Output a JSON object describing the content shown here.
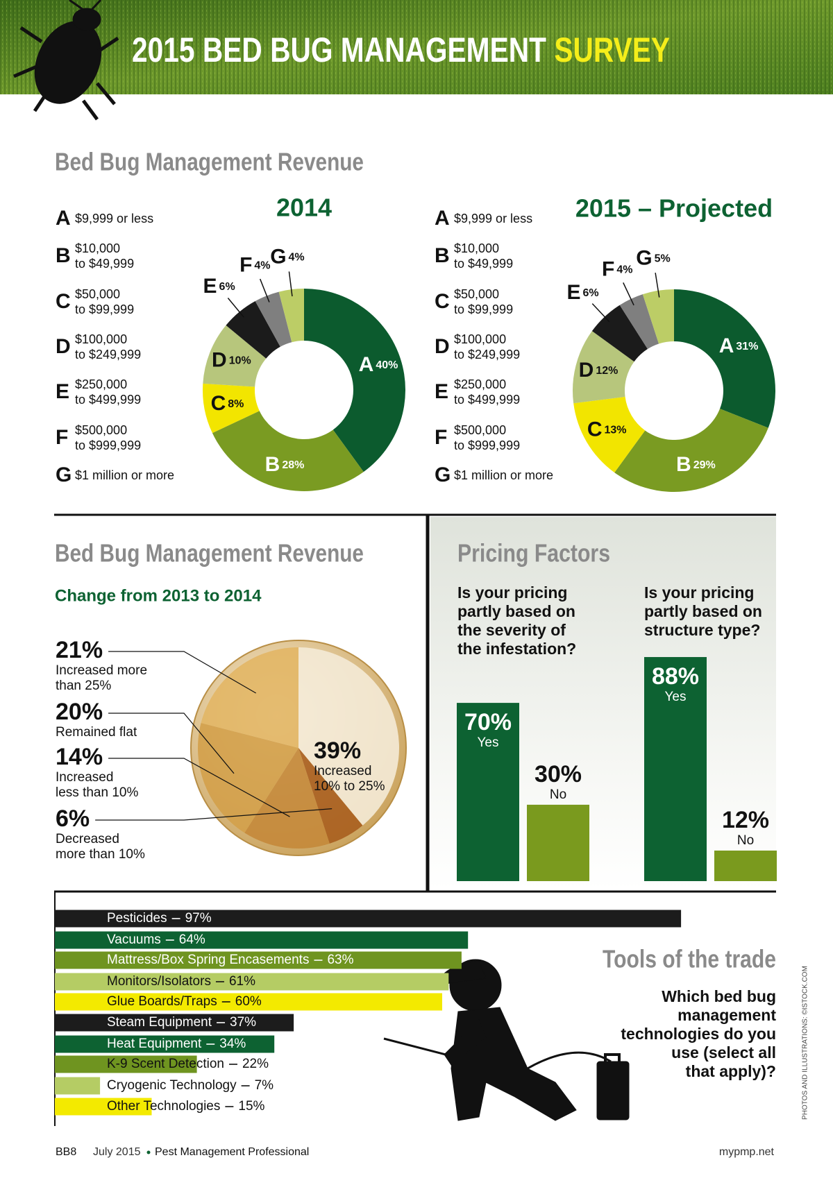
{
  "header": {
    "title": "2015 BED BUG MANAGEMENT",
    "title_highlight": "SURVEY"
  },
  "revenue_section": {
    "title": "Bed Bug Management Revenue",
    "ranges": [
      [
        "$9,999 or less"
      ],
      [
        "$10,000",
        "to $49,999"
      ],
      [
        "$50,000",
        "to $99,999"
      ],
      [
        "$100,000",
        "to $249,999"
      ],
      [
        "$250,000",
        "to $499,999"
      ],
      [
        "$500,000",
        "to $999,999"
      ],
      [
        "$1 million or more"
      ]
    ]
  },
  "change_section": {
    "title": "Bed Bug Management Revenue",
    "subtitle": "Change from 2013 to 2014"
  },
  "pricing_section": {
    "title": "Pricing Factors"
  },
  "tools_section": {
    "title": "Tools of the trade",
    "question": [
      "Which bed bug",
      "management",
      "technologies do you",
      "use (select all",
      "that apply)?"
    ]
  },
  "chart_data": [
    {
      "type": "donut",
      "title": "2014",
      "categories": [
        "A",
        "B",
        "C",
        "D",
        "E",
        "F",
        "G"
      ],
      "values": [
        40,
        28,
        8,
        10,
        6,
        4,
        4
      ],
      "value_labels": [
        "40%",
        "28%",
        "8%",
        "10%",
        "6%",
        "4%",
        "4%"
      ],
      "colors": [
        "#0c5b2e",
        "#7a9b22",
        "#f2e500",
        "#b7c67c",
        "#1b1b1b",
        "#7f7f7f",
        "#bccd66"
      ]
    },
    {
      "type": "donut",
      "title": "2015 – Projected",
      "categories": [
        "A",
        "B",
        "C",
        "D",
        "E",
        "F",
        "G"
      ],
      "values": [
        31,
        29,
        13,
        12,
        6,
        4,
        5
      ],
      "value_labels": [
        "31%",
        "29%",
        "13%",
        "12%",
        "6%",
        "4%",
        "5%"
      ],
      "colors": [
        "#0c5b2e",
        "#7a9b22",
        "#f2e500",
        "#b7c67c",
        "#1b1b1b",
        "#7f7f7f",
        "#bccd66"
      ]
    },
    {
      "type": "pie",
      "categories": [
        [
          "Increased more",
          "than 25%"
        ],
        [
          "Remained flat"
        ],
        [
          "Increased",
          "less than 10%"
        ],
        [
          "Decreased",
          "more than 10%"
        ],
        [
          "Increased",
          "10% to 25%"
        ]
      ],
      "values": [
        21,
        20,
        14,
        6,
        39
      ],
      "value_labels": [
        "21%",
        "20%",
        "14%",
        "6%",
        "39%"
      ],
      "colors": [
        "#e2b665",
        "#d3a04a",
        "#c4883a",
        "#a95e1e",
        "#f4ead6"
      ]
    },
    {
      "type": "bar",
      "title": [
        "Is your pricing",
        "partly based on",
        "the severity of",
        "the infestation?"
      ],
      "categories": [
        "Yes",
        "No"
      ],
      "values": [
        70,
        30
      ],
      "value_labels": [
        "70%",
        "30%"
      ],
      "colors": [
        "#0d6232",
        "#7a9a1e"
      ],
      "ylim": [
        0,
        100
      ]
    },
    {
      "type": "bar",
      "title": [
        "Is your pricing",
        "partly based on",
        "structure type?"
      ],
      "categories": [
        "Yes",
        "No"
      ],
      "values": [
        88,
        12
      ],
      "value_labels": [
        "88%",
        "12%"
      ],
      "colors": [
        "#0d6232",
        "#7a9a1e"
      ],
      "ylim": [
        0,
        100
      ]
    },
    {
      "type": "barh",
      "categories": [
        "Pesticides",
        "Vacuums",
        "Mattress/Box Spring Encasements",
        "Monitors/Isolators",
        "Glue Boards/Traps",
        "Steam Equipment",
        "Heat Equipment",
        "K-9 Scent Detection",
        "Cryogenic Technology",
        "Other Technologies"
      ],
      "values": [
        97,
        64,
        63,
        61,
        60,
        37,
        34,
        22,
        7,
        15
      ],
      "value_labels": [
        "97%",
        "64%",
        "63%",
        "61%",
        "60%",
        "37%",
        "34%",
        "22%",
        "7%",
        "15%"
      ],
      "colors": [
        "#1c1c1c",
        "#0d6232",
        "#6f9420",
        "#b5cc64",
        "#f3ea00",
        "#1c1c1c",
        "#0d6232",
        "#6f9420",
        "#b5cc64",
        "#f3ea00"
      ],
      "xlim": [
        0,
        100
      ]
    }
  ],
  "footer": {
    "page": "BB8",
    "date": "July 2015",
    "publication": "Pest Management Professional",
    "website": "mypmp.net",
    "credit": "PHOTOS AND ILLUSTRATIONS: ©ISTOCK.COM"
  }
}
